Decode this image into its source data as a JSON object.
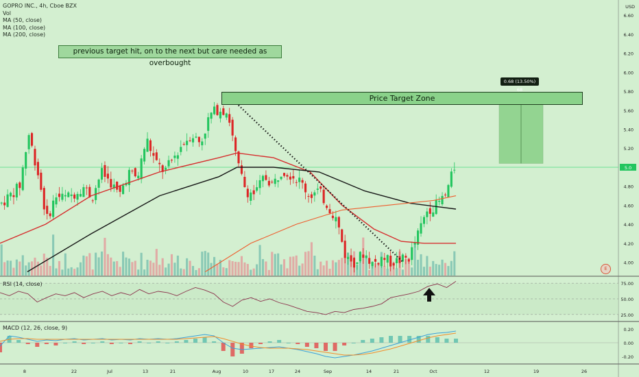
{
  "header": {
    "symbol_line": "GOPRO INC., 4h, Cboe BZX",
    "indicators": [
      "Vol",
      "MA (50, close)",
      "MA (100, close)",
      "MA (200, close)"
    ],
    "currency": "USD"
  },
  "annotations": {
    "note": "previous target hit, on to the next but care needed as overbought",
    "price_target_zone": "Price Target Zone",
    "measure_label": "0.68 (13.50%) 68",
    "earnings_icon": "E",
    "arrow_icon": "up-arrow"
  },
  "panes": {
    "rsi_label": "RSI (14, close)",
    "macd_label": "MACD (12, 26, close, 9)"
  },
  "colors": {
    "background": "#d3efd0",
    "up_candle": "#22c55e",
    "down_candle": "#dc2626",
    "ma50": "#d62d2d",
    "ma100": "#161616",
    "ma200": "#ef5b2b",
    "vol_up": "#78bfae",
    "vol_down": "#e39a9a",
    "rsi_line": "#8a2f4a",
    "macd_line": "#3aa0d8",
    "signal_line": "#f28c28"
  },
  "chart_data": [
    {
      "type": "candlestick",
      "title": "GOPRO INC., 4h, Cboe BZX",
      "y_axis_ticks": [
        "6.60",
        "6.40",
        "6.20",
        "6.00",
        "5.80",
        "5.60",
        "5.40",
        "5.20",
        "5.00",
        "4.80",
        "4.60",
        "4.40",
        "4.20",
        "4.00"
      ],
      "x_axis_ticks": [
        "8",
        "22",
        "Jul",
        "13",
        "21",
        "Aug",
        "10",
        "17",
        "24",
        "Sep",
        "14",
        "21",
        "Oct",
        "12",
        "19",
        "26"
      ],
      "ylim": [
        3.86,
        6.76
      ],
      "last_price": "5.0",
      "price_target_zone": [
        5.6,
        5.72
      ],
      "measure": {
        "from": 5.04,
        "to": 5.72,
        "change": "0.68 (13.50%)",
        "ticks": 68
      },
      "trendline": {
        "from": 5.72,
        "to": 4.0
      },
      "close_path": [
        [
          0,
          4.62
        ],
        [
          0.04,
          4.8
        ],
        [
          0.06,
          5.35
        ],
        [
          0.08,
          4.95
        ],
        [
          0.1,
          4.45
        ],
        [
          0.12,
          4.7
        ],
        [
          0.14,
          4.68
        ],
        [
          0.16,
          4.72
        ],
        [
          0.18,
          4.8
        ],
        [
          0.2,
          4.68
        ],
        [
          0.22,
          4.95
        ],
        [
          0.24,
          4.85
        ],
        [
          0.26,
          4.7
        ],
        [
          0.28,
          4.95
        ],
        [
          0.3,
          4.88
        ],
        [
          0.32,
          5.3
        ],
        [
          0.34,
          5.05
        ],
        [
          0.36,
          4.95
        ],
        [
          0.38,
          5.1
        ],
        [
          0.4,
          5.25
        ],
        [
          0.42,
          5.35
        ],
        [
          0.44,
          5.25
        ],
        [
          0.46,
          5.55
        ],
        [
          0.48,
          5.62
        ],
        [
          0.5,
          5.58
        ],
        [
          0.52,
          5.05
        ],
        [
          0.54,
          4.75
        ],
        [
          0.56,
          4.72
        ],
        [
          0.58,
          4.9
        ],
        [
          0.6,
          4.82
        ],
        [
          0.62,
          4.98
        ],
        [
          0.64,
          4.92
        ],
        [
          0.66,
          4.85
        ],
        [
          0.68,
          4.7
        ],
        [
          0.7,
          4.75
        ],
        [
          0.72,
          4.6
        ],
        [
          0.74,
          4.45
        ],
        [
          0.76,
          4.05
        ],
        [
          0.78,
          4.0
        ],
        [
          0.8,
          4.1
        ],
        [
          0.82,
          3.98
        ],
        [
          0.84,
          4.05
        ],
        [
          0.86,
          4.0
        ],
        [
          0.88,
          4.02
        ],
        [
          0.9,
          4.05
        ],
        [
          0.92,
          4.3
        ],
        [
          0.94,
          4.55
        ],
        [
          0.96,
          4.6
        ],
        [
          0.98,
          4.7
        ],
        [
          1.0,
          5.0
        ]
      ],
      "ma50": [
        [
          0,
          4.2
        ],
        [
          0.1,
          4.4
        ],
        [
          0.2,
          4.7
        ],
        [
          0.35,
          4.95
        ],
        [
          0.48,
          5.1
        ],
        [
          0.52,
          5.15
        ],
        [
          0.6,
          5.1
        ],
        [
          0.68,
          4.95
        ],
        [
          0.75,
          4.6
        ],
        [
          0.82,
          4.35
        ],
        [
          0.88,
          4.22
        ],
        [
          0.93,
          4.2
        ],
        [
          1.0,
          4.2
        ]
      ],
      "ma100": [
        [
          0.06,
          3.9
        ],
        [
          0.2,
          4.3
        ],
        [
          0.35,
          4.7
        ],
        [
          0.48,
          4.9
        ],
        [
          0.52,
          5.0
        ],
        [
          0.6,
          5.0
        ],
        [
          0.7,
          4.95
        ],
        [
          0.8,
          4.75
        ],
        [
          0.9,
          4.62
        ],
        [
          1.0,
          4.56
        ]
      ],
      "ma200": [
        [
          0.45,
          3.9
        ],
        [
          0.55,
          4.2
        ],
        [
          0.65,
          4.4
        ],
        [
          0.75,
          4.55
        ],
        [
          0.85,
          4.6
        ],
        [
          0.95,
          4.65
        ],
        [
          1.0,
          4.7
        ]
      ]
    },
    {
      "type": "line",
      "title": "RSI (14, close)",
      "y_axis_ticks": [
        "75.00",
        "50.00",
        "25.00"
      ],
      "ylim": [
        15,
        85
      ],
      "values": [
        60,
        55,
        62,
        58,
        45,
        52,
        58,
        55,
        60,
        52,
        58,
        62,
        55,
        60,
        56,
        65,
        58,
        62,
        60,
        55,
        62,
        68,
        64,
        58,
        45,
        38,
        48,
        52,
        46,
        50,
        44,
        40,
        35,
        30,
        28,
        25,
        30,
        28,
        33,
        35,
        38,
        42,
        52,
        55,
        58,
        62,
        70,
        74,
        68,
        78
      ]
    },
    {
      "type": "line",
      "title": "MACD (12, 26, close, 9)",
      "y_axis_ticks": [
        "0.20",
        "0.00",
        "-0.20"
      ],
      "ylim": [
        -0.3,
        0.3
      ],
      "macd": [
        -0.05,
        0.1,
        0.08,
        0.05,
        0.02,
        0.04,
        0.03,
        0.05,
        0.06,
        0.04,
        0.05,
        0.06,
        0.04,
        0.05,
        0.04,
        0.06,
        0.05,
        0.06,
        0.05,
        0.06,
        0.08,
        0.1,
        0.12,
        0.1,
        0.0,
        -0.08,
        -0.1,
        -0.09,
        -0.08,
        -0.07,
        -0.06,
        -0.08,
        -0.1,
        -0.13,
        -0.16,
        -0.2,
        -0.22,
        -0.2,
        -0.18,
        -0.15,
        -0.12,
        -0.08,
        -0.04,
        0.0,
        0.04,
        0.08,
        0.12,
        0.14,
        0.15,
        0.17
      ],
      "signal": [
        0.02,
        0.05,
        0.06,
        0.06,
        0.05,
        0.05,
        0.05,
        0.05,
        0.05,
        0.05,
        0.05,
        0.05,
        0.05,
        0.05,
        0.05,
        0.05,
        0.05,
        0.05,
        0.05,
        0.05,
        0.06,
        0.07,
        0.08,
        0.09,
        0.06,
        0.02,
        -0.02,
        -0.05,
        -0.07,
        -0.08,
        -0.08,
        -0.08,
        -0.09,
        -0.1,
        -0.12,
        -0.14,
        -0.16,
        -0.18,
        -0.18,
        -0.17,
        -0.15,
        -0.12,
        -0.09,
        -0.05,
        -0.01,
        0.03,
        0.07,
        0.1,
        0.12,
        0.14
      ]
    }
  ]
}
